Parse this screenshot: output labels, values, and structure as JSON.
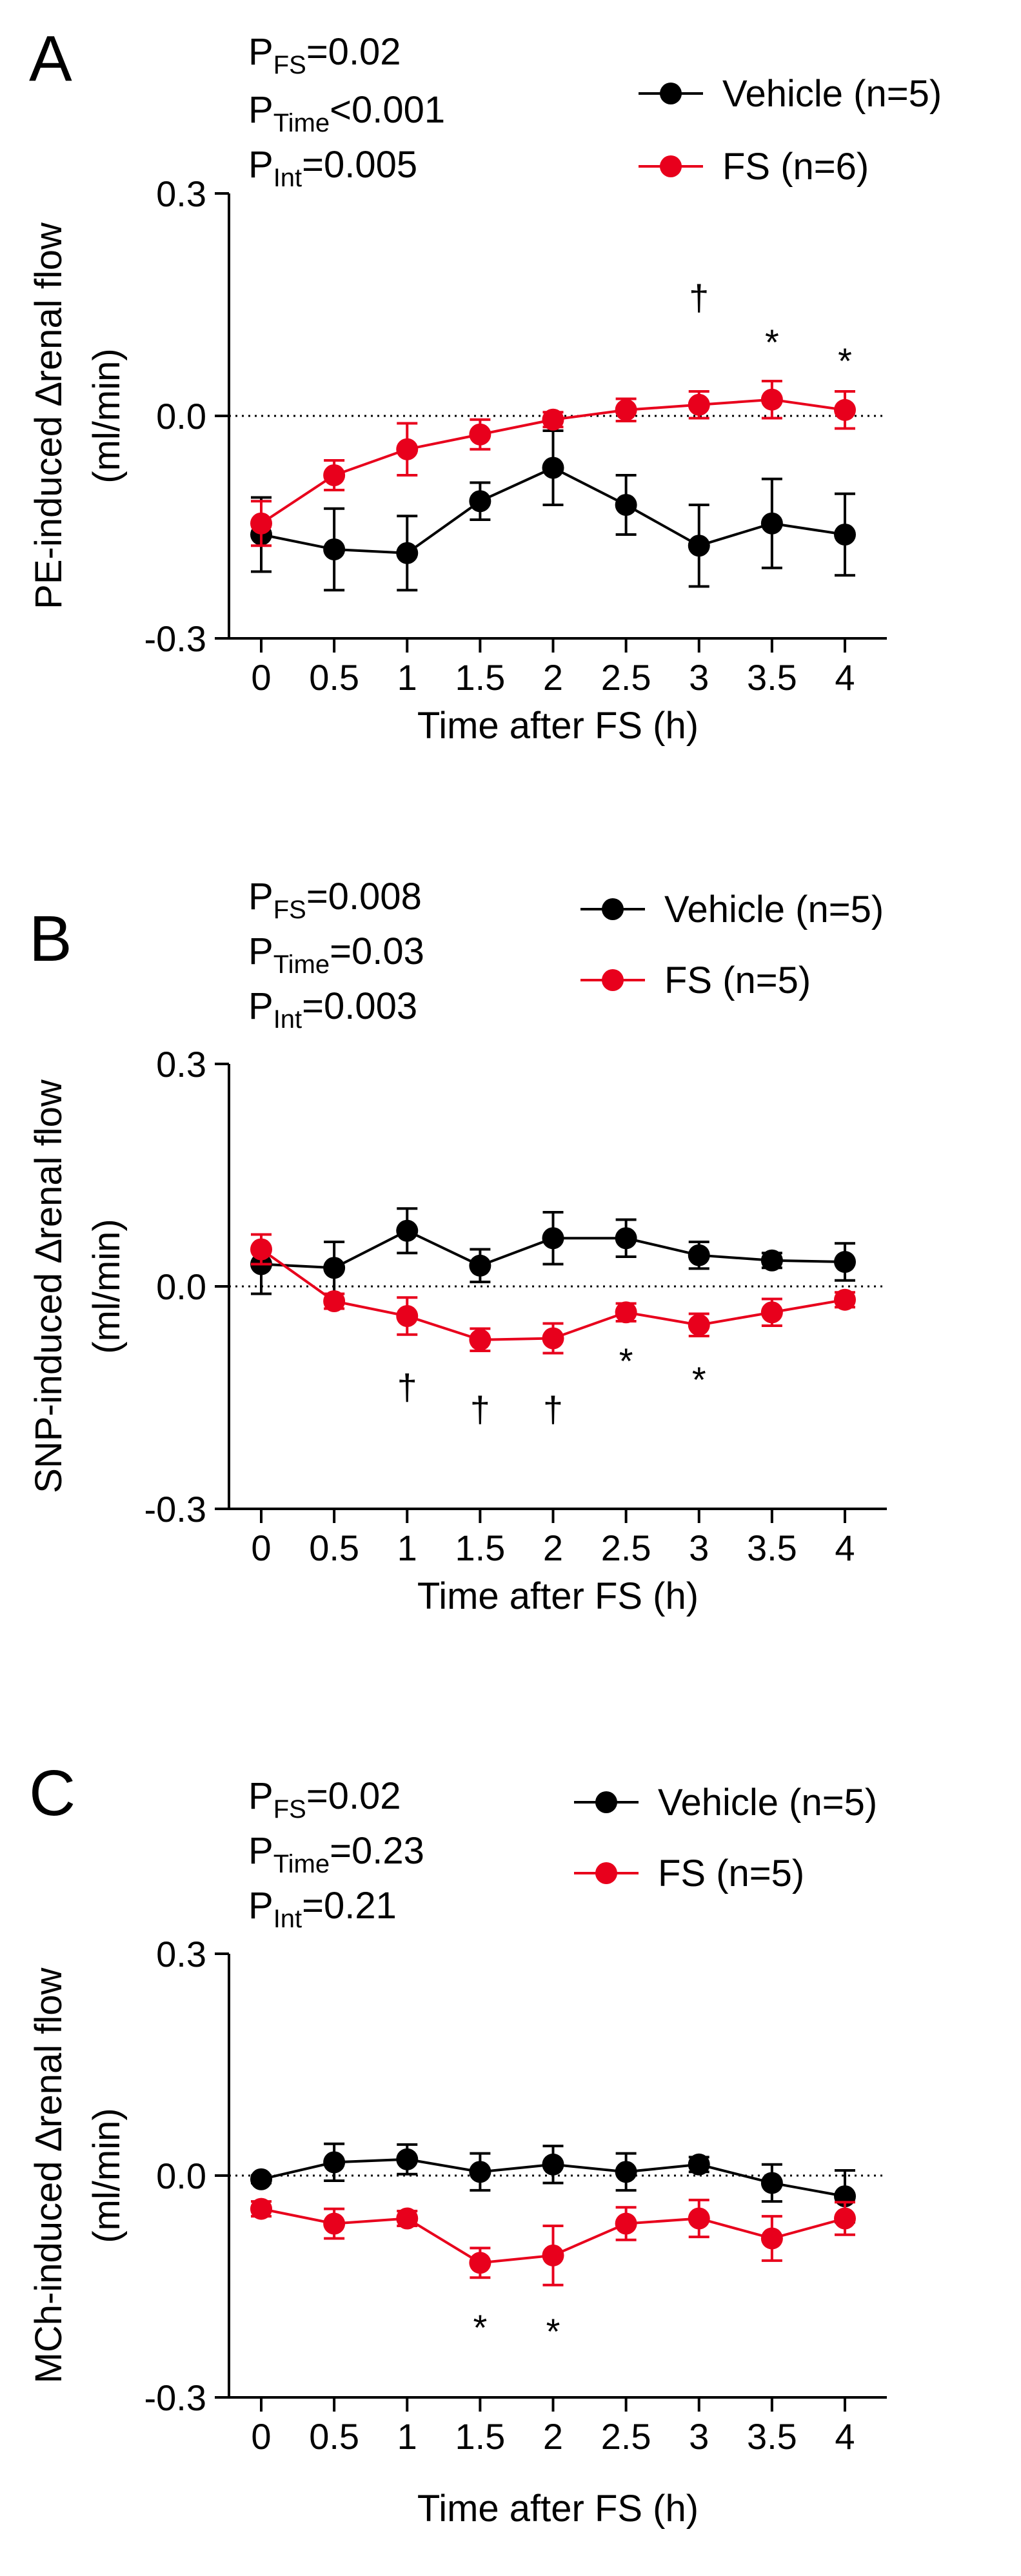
{
  "chart_data": [
    {
      "type": "line",
      "panel": "A",
      "stats": [
        {
          "base": "P",
          "sub": "FS",
          "rest": "=0.02"
        },
        {
          "base": "P",
          "sub": "Time",
          "rest": "<0.001"
        },
        {
          "base": "P",
          "sub": "Int",
          "rest": "=0.005"
        }
      ],
      "ylabel": "PE-induced ∆renal flow",
      "ylabel_units": "(ml/min)",
      "xlabel": "Time after FS (h)",
      "x": [
        0,
        0.5,
        1,
        1.5,
        2,
        2.5,
        3,
        3.5,
        4
      ],
      "x_tick_labels": [
        "0",
        "0.5",
        "1",
        "1.5",
        "2",
        "2.5",
        "3",
        "3.5",
        "4"
      ],
      "ylim": [
        -0.3,
        0.3
      ],
      "y_ticks": [
        0.3,
        0.0,
        -0.3
      ],
      "y_tick_labels": [
        "0.3",
        "0.0",
        "-0.3"
      ],
      "reference_line": 0.0,
      "series": [
        {
          "name": "Vehicle (n=5)",
          "color": "#000000",
          "values": [
            -0.16,
            -0.18,
            -0.185,
            -0.115,
            -0.07,
            -0.12,
            -0.175,
            -0.145,
            -0.16
          ],
          "errors": [
            0.05,
            0.055,
            0.05,
            0.025,
            0.05,
            0.04,
            0.055,
            0.06,
            0.055
          ]
        },
        {
          "name": "FS (n=6)",
          "color": "#e8001c",
          "values": [
            -0.145,
            -0.08,
            -0.045,
            -0.025,
            -0.005,
            0.008,
            0.015,
            0.022,
            0.008
          ],
          "errors": [
            0.03,
            0.02,
            0.035,
            0.02,
            0.01,
            0.015,
            0.018,
            0.025,
            0.025
          ]
        }
      ],
      "annotations": [
        {
          "x": 3,
          "y": 0.16,
          "text": "†"
        },
        {
          "x": 3.5,
          "y": 0.1,
          "text": "*"
        },
        {
          "x": 4,
          "y": 0.075,
          "text": "*"
        }
      ]
    },
    {
      "type": "line",
      "panel": "B",
      "stats": [
        {
          "base": "P",
          "sub": "FS",
          "rest": "=0.008"
        },
        {
          "base": "P",
          "sub": "Time",
          "rest": "=0.03"
        },
        {
          "base": "P",
          "sub": "Int",
          "rest": "=0.003"
        }
      ],
      "ylabel": "SNP-induced ∆renal flow",
      "ylabel_units": "(ml/min)",
      "xlabel": "Time after FS (h)",
      "x": [
        0,
        0.5,
        1,
        1.5,
        2,
        2.5,
        3,
        3.5,
        4
      ],
      "x_tick_labels": [
        "0",
        "0.5",
        "1",
        "1.5",
        "2",
        "2.5",
        "3",
        "3.5",
        "4"
      ],
      "ylim": [
        -0.3,
        0.3
      ],
      "y_ticks": [
        0.3,
        0.0,
        -0.3
      ],
      "y_tick_labels": [
        "0.3",
        "0.0",
        "-0.3"
      ],
      "reference_line": 0.0,
      "series": [
        {
          "name": "Vehicle (n=5)",
          "color": "#000000",
          "values": [
            0.03,
            0.025,
            0.075,
            0.028,
            0.065,
            0.065,
            0.042,
            0.035,
            0.033
          ],
          "errors": [
            0.04,
            0.035,
            0.03,
            0.022,
            0.035,
            0.025,
            0.018,
            0.01,
            0.025
          ]
        },
        {
          "name": "FS (n=5)",
          "color": "#e8001c",
          "values": [
            0.05,
            -0.02,
            -0.04,
            -0.072,
            -0.07,
            -0.035,
            -0.052,
            -0.035,
            -0.018
          ],
          "errors": [
            0.02,
            0.01,
            0.025,
            0.015,
            0.02,
            0.012,
            0.015,
            0.018,
            0.01
          ]
        }
      ],
      "annotations": [
        {
          "x": 1,
          "y": -0.135,
          "text": "†"
        },
        {
          "x": 1.5,
          "y": -0.165,
          "text": "†"
        },
        {
          "x": 2,
          "y": -0.165,
          "text": "†"
        },
        {
          "x": 2.5,
          "y": -0.1,
          "text": "*"
        },
        {
          "x": 3,
          "y": -0.125,
          "text": "*"
        }
      ]
    },
    {
      "type": "line",
      "panel": "C",
      "stats": [
        {
          "base": "P",
          "sub": "FS",
          "rest": "=0.02"
        },
        {
          "base": "P",
          "sub": "Time",
          "rest": "=0.23"
        },
        {
          "base": "P",
          "sub": "Int",
          "rest": "=0.21"
        }
      ],
      "ylabel": "MCh-induced ∆renal flow",
      "ylabel_units": "(ml/min)",
      "xlabel": "Time after FS (h)",
      "x": [
        0,
        0.5,
        1,
        1.5,
        2,
        2.5,
        3,
        3.5,
        4
      ],
      "x_tick_labels": [
        "0",
        "0.5",
        "1",
        "1.5",
        "2",
        "2.5",
        "3",
        "3.5",
        "4"
      ],
      "ylim": [
        -0.3,
        0.3
      ],
      "y_ticks": [
        0.3,
        0.0,
        -0.3
      ],
      "y_tick_labels": [
        "0.3",
        "0.0",
        "-0.3"
      ],
      "reference_line": 0.0,
      "series": [
        {
          "name": "Vehicle (n=5)",
          "color": "#000000",
          "values": [
            -0.005,
            0.018,
            0.022,
            0.005,
            0.015,
            0.005,
            0.015,
            -0.01,
            -0.028
          ],
          "errors": [
            0.005,
            0.025,
            0.02,
            0.025,
            0.025,
            0.025,
            0.01,
            0.025,
            0.035
          ]
        },
        {
          "name": "FS (n=5)",
          "color": "#e8001c",
          "values": [
            -0.045,
            -0.065,
            -0.058,
            -0.118,
            -0.108,
            -0.065,
            -0.058,
            -0.085,
            -0.058
          ],
          "errors": [
            0.01,
            0.02,
            0.01,
            0.02,
            0.04,
            0.022,
            0.025,
            0.03,
            0.022
          ]
        }
      ],
      "annotations": [
        {
          "x": 1.5,
          "y": -0.205,
          "text": "*"
        },
        {
          "x": 2,
          "y": -0.21,
          "text": "*"
        }
      ]
    }
  ]
}
